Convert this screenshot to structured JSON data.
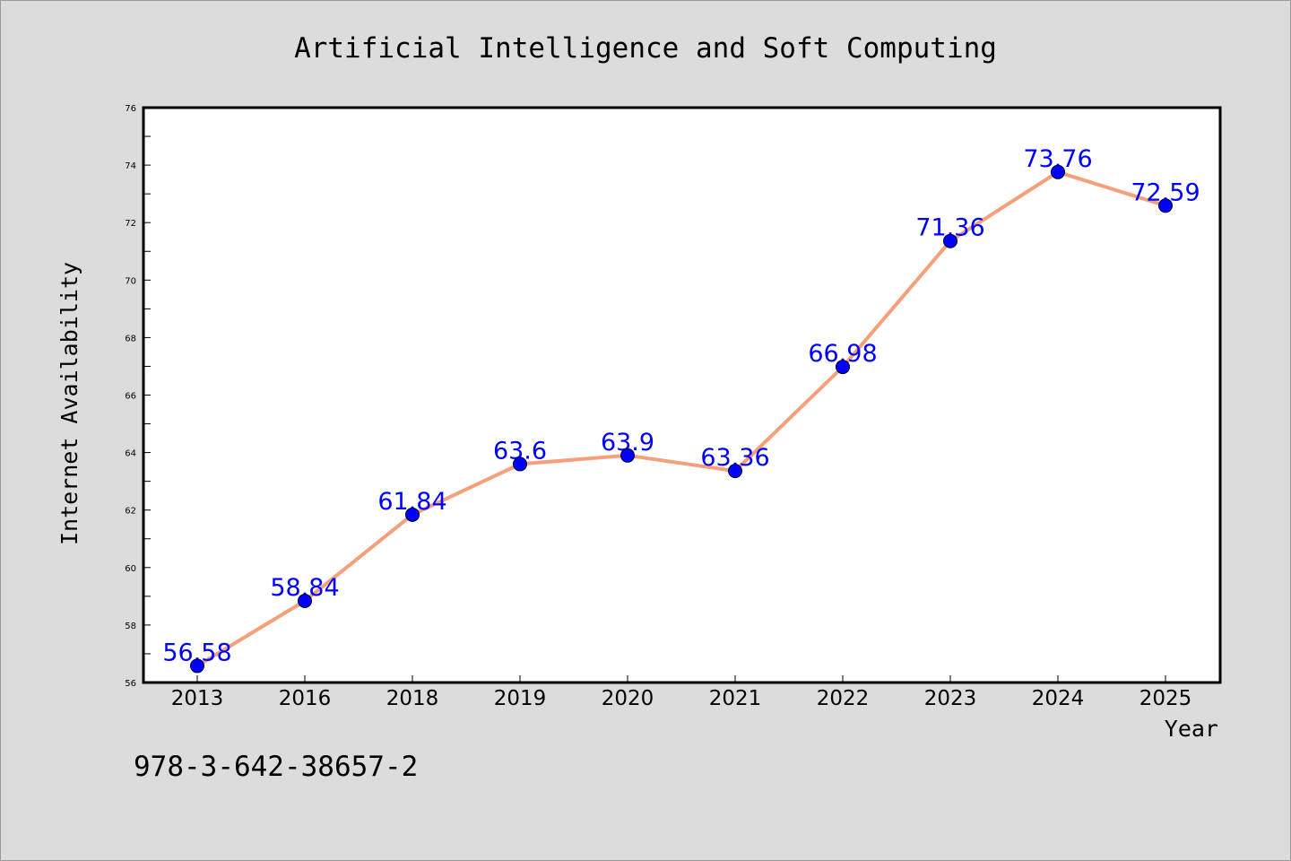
{
  "footer_text": "978-3-642-38657-2",
  "colors": {
    "background": "#dcdcdc",
    "plot_background": "#ffffff",
    "line": "#f5a07a",
    "marker": "#0000ff",
    "data_label": "#0000ff"
  },
  "chart_data": {
    "type": "line",
    "title": "Artificial Intelligence and Soft Computing",
    "xlabel": "Year",
    "ylabel": "Internet Availability",
    "categories": [
      "2013",
      "2016",
      "2018",
      "2019",
      "2020",
      "2021",
      "2022",
      "2023",
      "2024",
      "2025"
    ],
    "values": [
      56.58,
      58.84,
      61.84,
      63.6,
      63.9,
      63.36,
      66.98,
      71.36,
      73.76,
      72.59
    ],
    "data_labels": [
      "56.58",
      "58.84",
      "61.84",
      "63.6",
      "63.9",
      "63.36",
      "66.98",
      "71.36",
      "73.76",
      "72.59"
    ],
    "ylim": [
      56,
      76
    ],
    "yticks": [
      "56",
      "58",
      "60",
      "62",
      "64",
      "66",
      "68",
      "70",
      "72",
      "74",
      "76"
    ],
    "grid": false,
    "legend": "none"
  }
}
